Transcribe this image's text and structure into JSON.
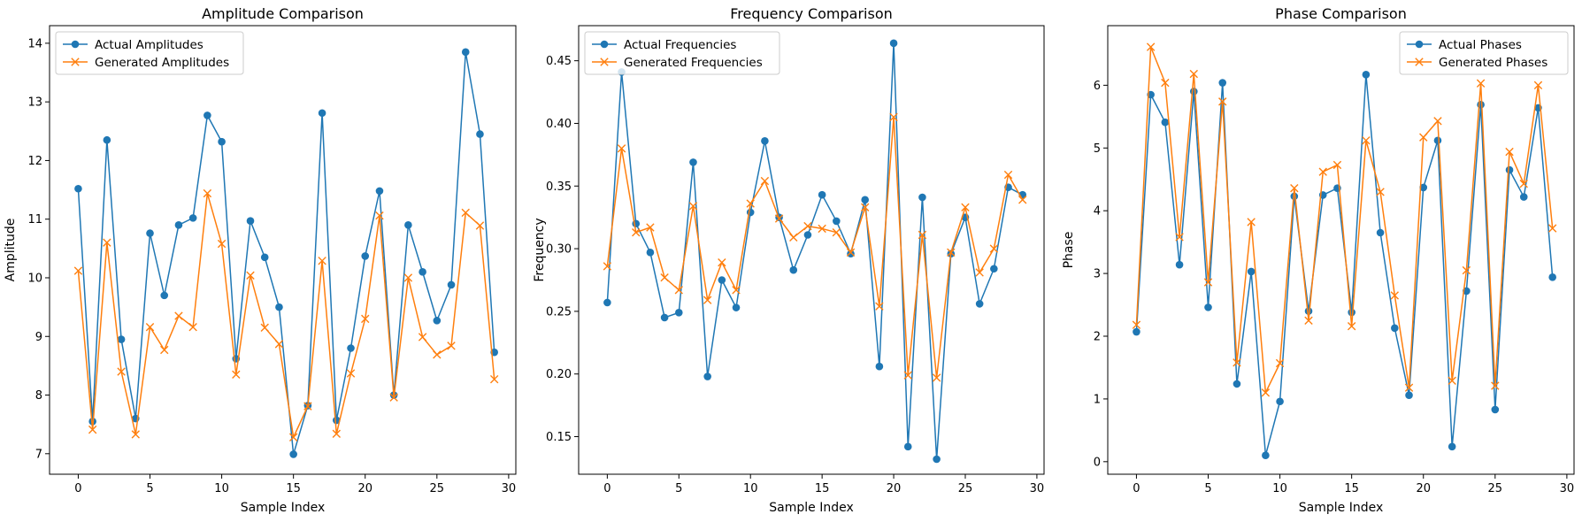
{
  "chart_data": [
    {
      "type": "line",
      "title": "Amplitude Comparison",
      "xlabel": "Sample Index",
      "ylabel": "Amplitude",
      "xlim": [
        -2,
        30.5
      ],
      "ylim": [
        6.65,
        14.3
      ],
      "xticks": [
        0,
        5,
        10,
        15,
        20,
        25,
        30
      ],
      "yticks": [
        7,
        8,
        9,
        10,
        11,
        12,
        13,
        14
      ],
      "legend_position": "upper-left",
      "grid": false,
      "x": [
        0,
        1,
        2,
        3,
        4,
        5,
        6,
        7,
        8,
        9,
        10,
        11,
        12,
        13,
        14,
        15,
        16,
        17,
        18,
        19,
        20,
        21,
        22,
        23,
        24,
        25,
        26,
        27,
        28,
        29
      ],
      "series": [
        {
          "name": "Actual Amplitudes",
          "color": "#1f77b4",
          "marker": "circle",
          "values": [
            11.52,
            7.55,
            12.35,
            8.95,
            7.6,
            10.76,
            9.7,
            10.9,
            11.02,
            12.77,
            12.32,
            8.62,
            10.97,
            10.35,
            9.5,
            6.99,
            7.82,
            12.81,
            7.57,
            8.8,
            10.37,
            11.48,
            8.0,
            10.9,
            10.1,
            9.27,
            9.88,
            13.85,
            12.45,
            8.73
          ]
        },
        {
          "name": "Generated Amplitudes",
          "color": "#ff7f0e",
          "marker": "x",
          "values": [
            10.12,
            7.41,
            10.6,
            8.4,
            7.33,
            9.16,
            8.77,
            9.35,
            9.16,
            11.44,
            10.58,
            8.35,
            10.04,
            9.15,
            8.87,
            7.28,
            7.81,
            10.29,
            7.34,
            8.37,
            9.3,
            11.06,
            7.96,
            10.0,
            8.99,
            8.69,
            8.84,
            11.11,
            10.89,
            8.27
          ]
        }
      ]
    },
    {
      "type": "line",
      "title": "Frequency Comparison",
      "xlabel": "Sample Index",
      "ylabel": "Frequency",
      "xlim": [
        -2,
        30.5
      ],
      "ylim": [
        0.12,
        0.478
      ],
      "xticks": [
        0,
        5,
        10,
        15,
        20,
        25,
        30
      ],
      "yticks": [
        0.15,
        0.2,
        0.25,
        0.3,
        0.35,
        0.4,
        0.45
      ],
      "ytick_labels": [
        "0.15",
        "0.20",
        "0.25",
        "0.30",
        "0.35",
        "0.40",
        "0.45"
      ],
      "legend_position": "upper-left",
      "grid": false,
      "x": [
        0,
        1,
        2,
        3,
        4,
        5,
        6,
        7,
        8,
        9,
        10,
        11,
        12,
        13,
        14,
        15,
        16,
        17,
        18,
        19,
        20,
        21,
        22,
        23,
        24,
        25,
        26,
        27,
        28,
        29
      ],
      "series": [
        {
          "name": "Actual Frequencies",
          "color": "#1f77b4",
          "marker": "circle",
          "values": [
            0.257,
            0.441,
            0.32,
            0.297,
            0.245,
            0.249,
            0.369,
            0.198,
            0.275,
            0.253,
            0.329,
            0.386,
            0.325,
            0.283,
            0.311,
            0.343,
            0.322,
            0.296,
            0.339,
            0.206,
            0.464,
            0.142,
            0.341,
            0.132,
            0.296,
            0.325,
            0.256,
            0.284,
            0.349,
            0.343
          ]
        },
        {
          "name": "Generated Frequencies",
          "color": "#ff7f0e",
          "marker": "x",
          "values": [
            0.286,
            0.38,
            0.313,
            0.317,
            0.277,
            0.267,
            0.334,
            0.259,
            0.289,
            0.267,
            0.336,
            0.354,
            0.324,
            0.309,
            0.318,
            0.316,
            0.313,
            0.297,
            0.333,
            0.254,
            0.405,
            0.199,
            0.311,
            0.197,
            0.297,
            0.333,
            0.281,
            0.3,
            0.359,
            0.339
          ]
        }
      ]
    },
    {
      "type": "line",
      "title": "Phase Comparison",
      "xlabel": "Sample Index",
      "ylabel": "Phase",
      "xlim": [
        -2,
        30.5
      ],
      "ylim": [
        -0.2,
        6.95
      ],
      "xticks": [
        0,
        5,
        10,
        15,
        20,
        25,
        30
      ],
      "yticks": [
        0,
        1,
        2,
        3,
        4,
        5,
        6
      ],
      "legend_position": "upper-right",
      "grid": false,
      "x": [
        0,
        1,
        2,
        3,
        4,
        5,
        6,
        7,
        8,
        9,
        10,
        11,
        12,
        13,
        14,
        15,
        16,
        17,
        18,
        19,
        20,
        21,
        22,
        23,
        24,
        25,
        26,
        27,
        28,
        29
      ],
      "series": [
        {
          "name": "Actual Phases",
          "color": "#1f77b4",
          "marker": "circle",
          "values": [
            2.07,
            5.85,
            5.41,
            3.14,
            5.9,
            2.46,
            6.04,
            1.24,
            3.03,
            0.1,
            0.96,
            4.23,
            2.4,
            4.25,
            4.36,
            2.38,
            6.17,
            3.65,
            2.13,
            1.06,
            4.37,
            5.12,
            0.24,
            2.72,
            5.69,
            0.83,
            4.65,
            4.22,
            5.64,
            2.94
          ]
        },
        {
          "name": "Generated Phases",
          "color": "#ff7f0e",
          "marker": "x",
          "values": [
            2.18,
            6.61,
            6.04,
            3.58,
            6.18,
            2.86,
            5.74,
            1.58,
            3.82,
            1.1,
            1.57,
            4.36,
            2.25,
            4.62,
            4.73,
            2.16,
            5.12,
            4.3,
            2.65,
            1.18,
            5.17,
            5.43,
            1.29,
            3.05,
            6.03,
            1.21,
            4.94,
            4.43,
            6.0,
            3.72
          ]
        }
      ]
    }
  ]
}
